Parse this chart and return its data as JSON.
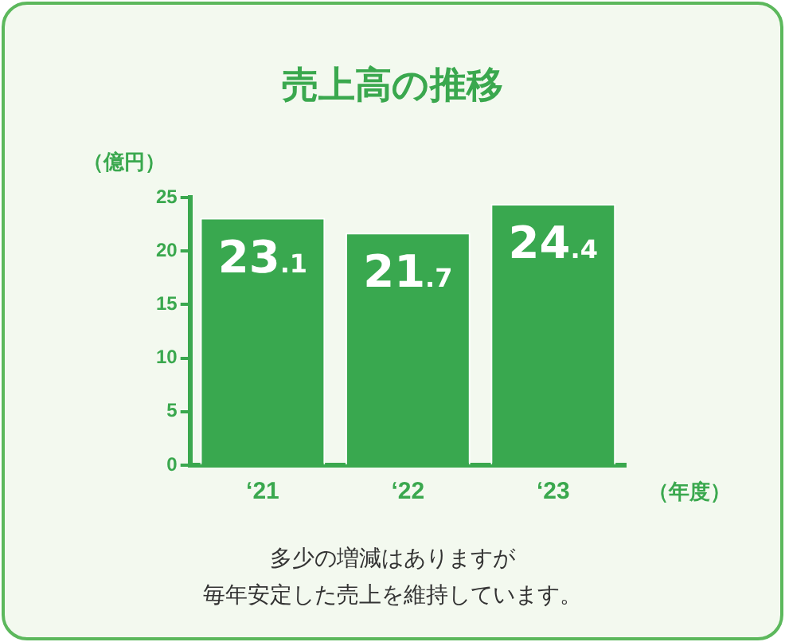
{
  "chart_data": {
    "type": "bar",
    "title": "売上高の推移",
    "ylabel": "（億円）",
    "xlabel": "（年度）",
    "categories": [
      "‘21",
      "‘22",
      "‘23"
    ],
    "values": [
      23.1,
      21.7,
      24.4
    ],
    "color": "#39a84f",
    "ylim": [
      0,
      25
    ],
    "yticks": [
      0,
      5,
      10,
      15,
      20,
      25
    ],
    "grid": false,
    "data_labels": true,
    "annotations": [
      "多少の増減はありますが",
      "毎年安定した売上を維持しています。"
    ]
  }
}
